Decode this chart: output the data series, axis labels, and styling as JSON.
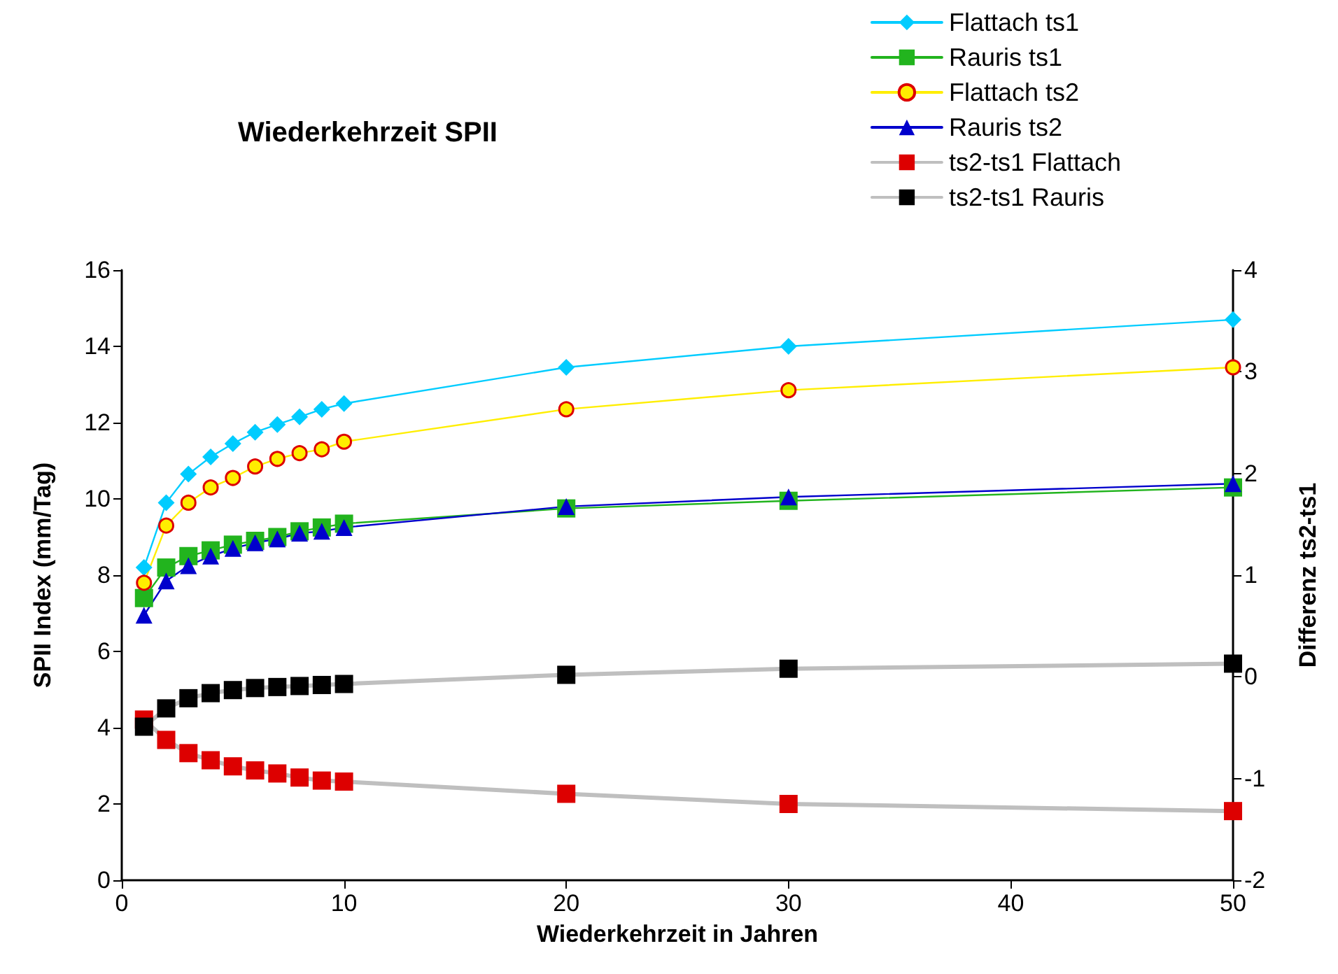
{
  "chart_data": {
    "type": "line",
    "title": "Wiederkehrzeit SPII",
    "xlabel": "Wiederkehrzeit in Jahren",
    "ylabel": "SPII Index (mm/Tag)",
    "y2label": "Differenz ts2-ts1",
    "x": [
      1,
      2,
      3,
      4,
      5,
      6,
      7,
      8,
      9,
      10,
      20,
      30,
      50
    ],
    "xlim": [
      0,
      50
    ],
    "xticks": [
      0,
      10,
      20,
      30,
      40,
      50
    ],
    "ylim": [
      0,
      16
    ],
    "yticks": [
      0,
      2,
      4,
      6,
      8,
      10,
      12,
      14,
      16
    ],
    "y2lim": [
      -2,
      4
    ],
    "y2ticks": [
      -2,
      -1,
      0,
      1,
      2,
      3,
      4
    ],
    "grid": false,
    "legend": "top right",
    "series": [
      {
        "name": "Flattach ts1",
        "color": "#00ccff",
        "marker": "diamond",
        "values": [
          8.2,
          9.9,
          10.65,
          11.1,
          11.45,
          11.75,
          11.95,
          12.15,
          12.35,
          12.5,
          13.45,
          14.0,
          14.7
        ]
      },
      {
        "name": "Rauris ts1",
        "color": "#22b41e",
        "marker": "square",
        "values": [
          7.4,
          8.2,
          8.5,
          8.65,
          8.8,
          8.9,
          9.0,
          9.15,
          9.25,
          9.35,
          9.75,
          9.95,
          10.3
        ]
      },
      {
        "name": "Flattach ts2",
        "color": "#ffee00",
        "marker": "circle",
        "values": [
          7.8,
          9.3,
          9.9,
          10.3,
          10.55,
          10.85,
          11.05,
          11.2,
          11.3,
          11.5,
          12.35,
          12.85,
          13.45
        ]
      },
      {
        "name": "Rauris ts2",
        "color": "#0000cc",
        "marker": "triangle",
        "values": [
          6.95,
          7.85,
          8.25,
          8.5,
          8.7,
          8.85,
          8.95,
          9.1,
          9.15,
          9.25,
          9.8,
          10.05,
          10.4
        ]
      },
      {
        "name": "ts2-ts1 Flattach",
        "color": "#dd0000",
        "marker": "square",
        "axis": "y2",
        "values": [
          -0.42,
          -0.62,
          -0.75,
          -0.82,
          -0.88,
          -0.92,
          -0.95,
          -0.99,
          -1.02,
          -1.03,
          -1.15,
          -1.25,
          -1.32
        ]
      },
      {
        "name": "ts2-ts1 Rauris",
        "color": "#000000",
        "marker": "square",
        "axis": "y2",
        "values": [
          -0.49,
          -0.31,
          -0.21,
          -0.16,
          -0.13,
          -0.11,
          -0.1,
          -0.09,
          -0.08,
          -0.07,
          0.02,
          0.08,
          0.13
        ]
      }
    ]
  }
}
